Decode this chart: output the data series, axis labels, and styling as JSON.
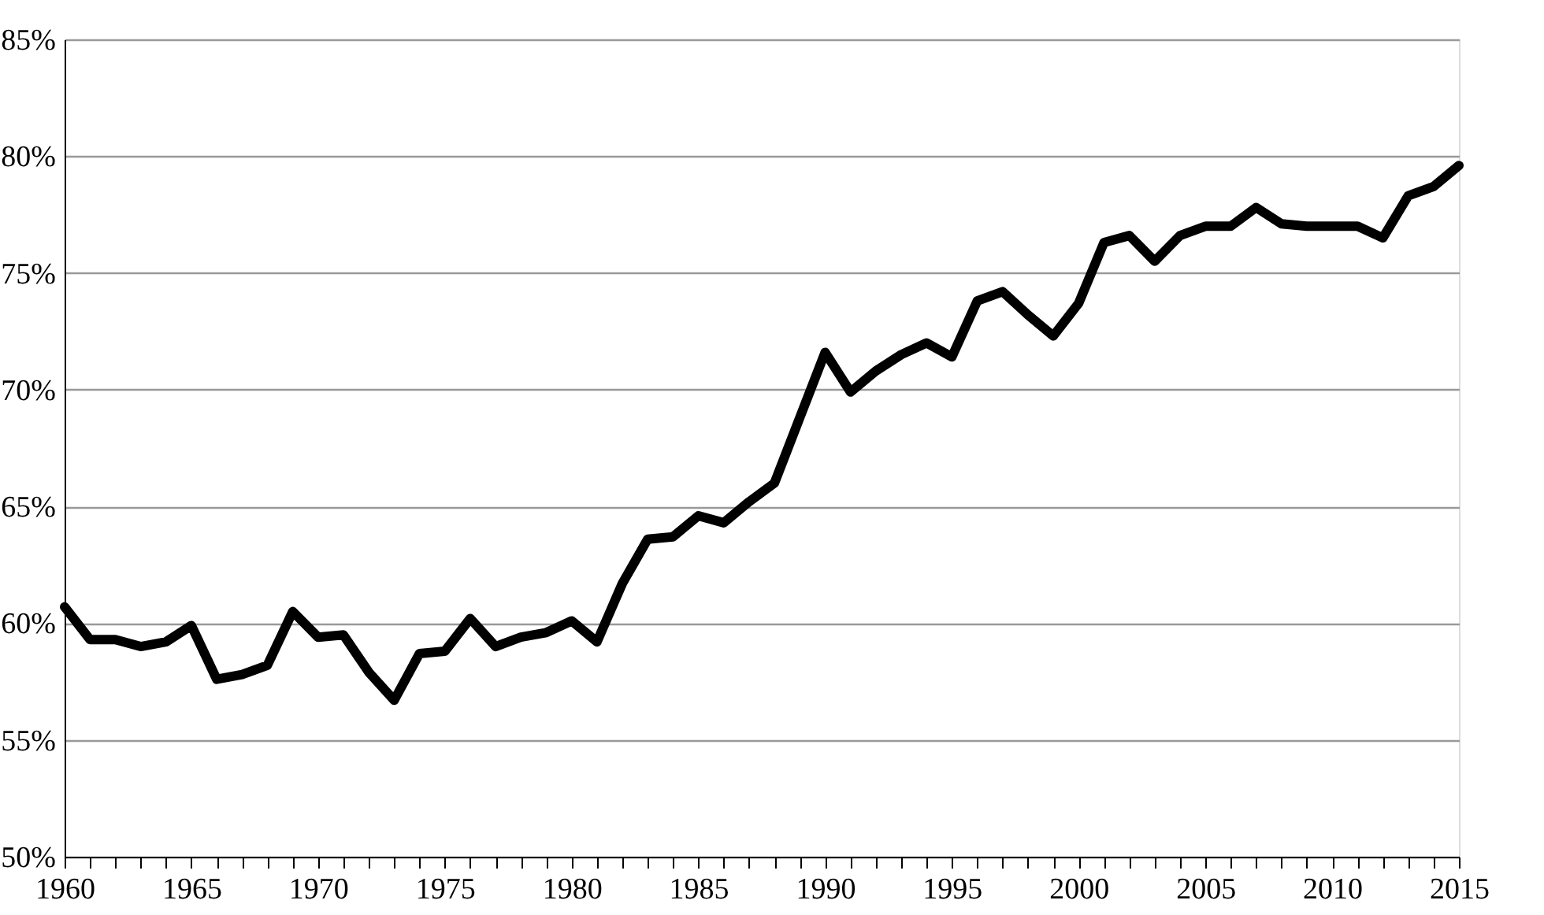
{
  "chart_data": {
    "type": "line",
    "x": [
      1960,
      1961,
      1962,
      1963,
      1964,
      1965,
      1966,
      1967,
      1968,
      1969,
      1970,
      1971,
      1972,
      1973,
      1974,
      1975,
      1976,
      1977,
      1978,
      1979,
      1980,
      1981,
      1982,
      1983,
      1984,
      1985,
      1986,
      1987,
      1988,
      1989,
      1990,
      1991,
      1992,
      1993,
      1994,
      1995,
      1996,
      1997,
      1998,
      1999,
      2000,
      2001,
      2002,
      2003,
      2004,
      2005,
      2006,
      2007,
      2008,
      2009,
      2010,
      2011,
      2012,
      2013,
      2014,
      2015
    ],
    "series": [
      {
        "color": "#000000",
        "values": [
          60.7,
          59.3,
          59.3,
          59.0,
          59.2,
          59.9,
          57.6,
          57.8,
          58.2,
          60.5,
          59.4,
          59.5,
          57.9,
          56.7,
          58.7,
          58.8,
          60.2,
          59.0,
          59.4,
          59.6,
          60.1,
          59.2,
          61.7,
          63.6,
          63.7,
          64.6,
          64.3,
          65.2,
          66.0,
          68.8,
          71.6,
          69.9,
          70.8,
          71.5,
          72.0,
          71.4,
          73.8,
          74.2,
          73.2,
          72.3,
          73.7,
          76.3,
          76.6,
          75.5,
          76.6,
          77.0,
          77.0,
          77.8,
          77.1,
          77.0,
          77.0,
          77.0,
          76.5,
          78.3,
          78.7,
          79.6
        ]
      }
    ],
    "xlim": [
      1960,
      2015
    ],
    "xticks": [
      1960,
      {
        "value": 1961,
        "label": null
      },
      {
        "value": 1962,
        "label": null
      },
      {
        "value": 1963,
        "label": null
      },
      {
        "value": 1964,
        "label": null
      },
      1965,
      {
        "value": 1966,
        "label": null
      },
      {
        "value": 1967,
        "label": null
      },
      {
        "value": 1968,
        "label": null
      },
      {
        "value": 1969,
        "label": null
      },
      1970,
      {
        "value": 1971,
        "label": null
      },
      {
        "value": 1972,
        "label": null
      },
      {
        "value": 1973,
        "label": null
      },
      {
        "value": 1974,
        "label": null
      },
      1975,
      {
        "value": 1976,
        "label": null
      },
      {
        "value": 1977,
        "label": null
      },
      {
        "value": 1978,
        "label": null
      },
      {
        "value": 1979,
        "label": null
      },
      1980,
      {
        "value": 1981,
        "label": null
      },
      {
        "value": 1982,
        "label": null
      },
      {
        "value": 1983,
        "label": null
      },
      {
        "value": 1984,
        "label": null
      },
      1985,
      {
        "value": 1986,
        "label": null
      },
      {
        "value": 1987,
        "label": null
      },
      {
        "value": 1988,
        "label": null
      },
      {
        "value": 1989,
        "label": null
      },
      1990,
      {
        "value": 1991,
        "label": null
      },
      {
        "value": 1992,
        "label": null
      },
      {
        "value": 1993,
        "label": null
      },
      {
        "value": 1994,
        "label": null
      },
      1995,
      {
        "value": 1996,
        "label": null
      },
      {
        "value": 1997,
        "label": null
      },
      {
        "value": 1998,
        "label": null
      },
      {
        "value": 1999,
        "label": null
      },
      2000,
      {
        "value": 2001,
        "label": null
      },
      {
        "value": 2002,
        "label": null
      },
      {
        "value": 2003,
        "label": null
      },
      {
        "value": 2004,
        "label": null
      },
      2005,
      {
        "value": 2006,
        "label": null
      },
      {
        "value": 2007,
        "label": null
      },
      {
        "value": 2008,
        "label": null
      },
      {
        "value": 2009,
        "label": null
      },
      2010,
      {
        "value": 2011,
        "label": null
      },
      {
        "value": 2012,
        "label": null
      },
      {
        "value": 2013,
        "label": null
      },
      {
        "value": 2014,
        "label": null
      },
      2015
    ],
    "ylim": [
      50,
      85
    ],
    "yticks": [
      {
        "value": 50,
        "label": "50%"
      },
      {
        "value": 55,
        "label": "55%"
      },
      {
        "value": 60,
        "label": "60%"
      },
      {
        "value": 65,
        "label": "65%"
      },
      {
        "value": 70,
        "label": "70%"
      },
      {
        "value": 75,
        "label": "75%"
      },
      {
        "value": 80,
        "label": "80%"
      },
      {
        "value": 85,
        "label": "85%"
      }
    ],
    "grid": "y",
    "legend": false,
    "marker": "none",
    "line_style": "solid"
  }
}
